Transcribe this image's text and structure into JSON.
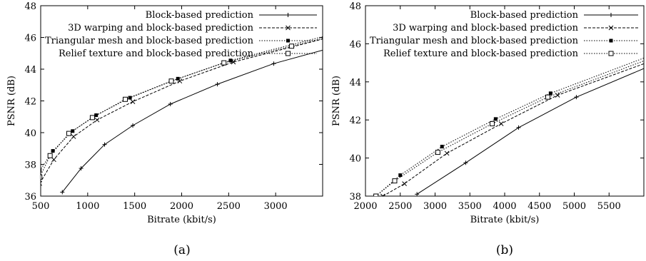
{
  "chart_data": [
    {
      "type": "line",
      "caption": "(a)",
      "xlabel": "Bitrate (kbit/s)",
      "ylabel": "PSNR (dB)",
      "xlim": [
        500,
        3500
      ],
      "ylim": [
        36,
        48
      ],
      "xticks": [
        500,
        1000,
        1500,
        2000,
        2500,
        3000
      ],
      "yticks": [
        36,
        38,
        40,
        42,
        44,
        46,
        48
      ],
      "grid": false,
      "legend_position": "top-right",
      "series": [
        {
          "name": "Block-based prediction",
          "line": "solid",
          "marker": "plus",
          "x": [
            730,
            930,
            1180,
            1480,
            1880,
            2380,
            2980,
            3500
          ],
          "y": [
            36.25,
            37.75,
            39.25,
            40.45,
            41.8,
            43.05,
            44.35,
            45.2
          ]
        },
        {
          "name": "3D warping and block-based prediction",
          "line": "dashed",
          "marker": "x",
          "x": [
            490,
            640,
            850,
            1100,
            1480,
            1980,
            2550,
            3500
          ],
          "y": [
            36.8,
            38.3,
            39.75,
            40.8,
            41.95,
            43.25,
            44.45,
            45.9
          ]
        },
        {
          "name": "Triangular mesh and block-based prediction",
          "line": "dotted",
          "marker": "filled-square",
          "x": [
            490,
            630,
            840,
            1090,
            1450,
            1960,
            2520,
            3500
          ],
          "y": [
            37.6,
            38.85,
            40.1,
            41.1,
            42.2,
            43.4,
            44.55,
            46.05
          ]
        },
        {
          "name": "Relief texture and block-based prediction",
          "line": "dotted",
          "marker": "open-square",
          "x": [
            490,
            600,
            800,
            1050,
            1400,
            1890,
            2450,
            3170,
            3500
          ],
          "y": [
            37.2,
            38.55,
            39.95,
            40.95,
            42.1,
            43.25,
            44.4,
            45.45,
            45.95
          ]
        }
      ]
    },
    {
      "type": "line",
      "caption": "(b)",
      "xlabel": "Bitrate (kbit/s)",
      "ylabel": "PSNR (dB)",
      "xlim": [
        2000,
        6000
      ],
      "ylim": [
        38,
        48
      ],
      "xticks": [
        2000,
        2500,
        3000,
        3500,
        4000,
        4500,
        5000,
        5500
      ],
      "yticks": [
        38,
        40,
        42,
        44,
        46,
        48
      ],
      "grid": false,
      "legend_position": "top-right",
      "series": [
        {
          "name": "Block-based prediction",
          "line": "solid",
          "marker": "plus",
          "x": [
            2740,
            3440,
            4200,
            5030,
            6000
          ],
          "y": [
            38.1,
            39.75,
            41.6,
            43.2,
            44.7
          ]
        },
        {
          "name": "3D warping and block-based prediction",
          "line": "dashed",
          "marker": "x",
          "x": [
            2250,
            2560,
            3170,
            3950,
            4760,
            6000
          ],
          "y": [
            38.0,
            38.65,
            40.25,
            41.8,
            43.3,
            44.95
          ]
        },
        {
          "name": "Triangular mesh and block-based prediction",
          "line": "dotted",
          "marker": "filled-square",
          "x": [
            2150,
            2500,
            3100,
            3870,
            4660,
            6000
          ],
          "y": [
            38.0,
            39.1,
            40.6,
            42.05,
            43.4,
            45.25
          ]
        },
        {
          "name": "Relief texture and block-based prediction",
          "line": "dotted",
          "marker": "open-square",
          "x": [
            2150,
            2420,
            3040,
            3820,
            4620,
            6000
          ],
          "y": [
            38.0,
            38.8,
            40.3,
            41.8,
            43.2,
            45.1
          ]
        }
      ]
    }
  ]
}
